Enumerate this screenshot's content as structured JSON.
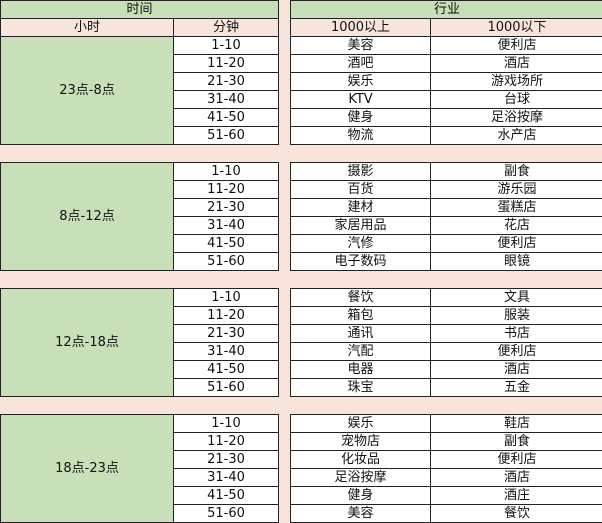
{
  "header": {
    "time": "时间",
    "industry": "行业",
    "hour": "小时",
    "minute": "分钟",
    "above": "1000以上",
    "below": "1000以下"
  },
  "colors": {
    "header_green": "#c8e0b8",
    "background_pink": "#f9e4dc"
  },
  "groups": [
    {
      "hour": "23点-8点",
      "rows": [
        [
          "1-10",
          "美容",
          "便利店"
        ],
        [
          "11-20",
          "酒吧",
          "酒店"
        ],
        [
          "21-30",
          "娱乐",
          "游戏场所"
        ],
        [
          "31-40",
          "KTV",
          "台球"
        ],
        [
          "41-50",
          "健身",
          "足浴按摩"
        ],
        [
          "51-60",
          "物流",
          "水产店"
        ]
      ]
    },
    {
      "hour": "8点-12点",
      "rows": [
        [
          "1-10",
          "摄影",
          "副食"
        ],
        [
          "11-20",
          "百货",
          "游乐园"
        ],
        [
          "21-30",
          "建材",
          "蛋糕店"
        ],
        [
          "31-40",
          "家居用品",
          "花店"
        ],
        [
          "41-50",
          "汽修",
          "便利店"
        ],
        [
          "51-60",
          "电子数码",
          "眼镜"
        ]
      ]
    },
    {
      "hour": "12点-18点",
      "rows": [
        [
          "1-10",
          "餐饮",
          "文具"
        ],
        [
          "11-20",
          "箱包",
          "服装"
        ],
        [
          "21-30",
          "通讯",
          "书店"
        ],
        [
          "31-40",
          "汽配",
          "便利店"
        ],
        [
          "41-50",
          "电器",
          "酒店"
        ],
        [
          "51-60",
          "珠宝",
          "五金"
        ]
      ]
    },
    {
      "hour": "18点-23点",
      "rows": [
        [
          "1-10",
          "娱乐",
          "鞋店"
        ],
        [
          "11-20",
          "宠物店",
          "副食"
        ],
        [
          "21-30",
          "化妆品",
          "便利店"
        ],
        [
          "31-40",
          "足浴按摩",
          "酒店"
        ],
        [
          "41-50",
          "健身",
          "酒庄"
        ],
        [
          "51-60",
          "美容",
          "餐饮"
        ]
      ]
    }
  ]
}
